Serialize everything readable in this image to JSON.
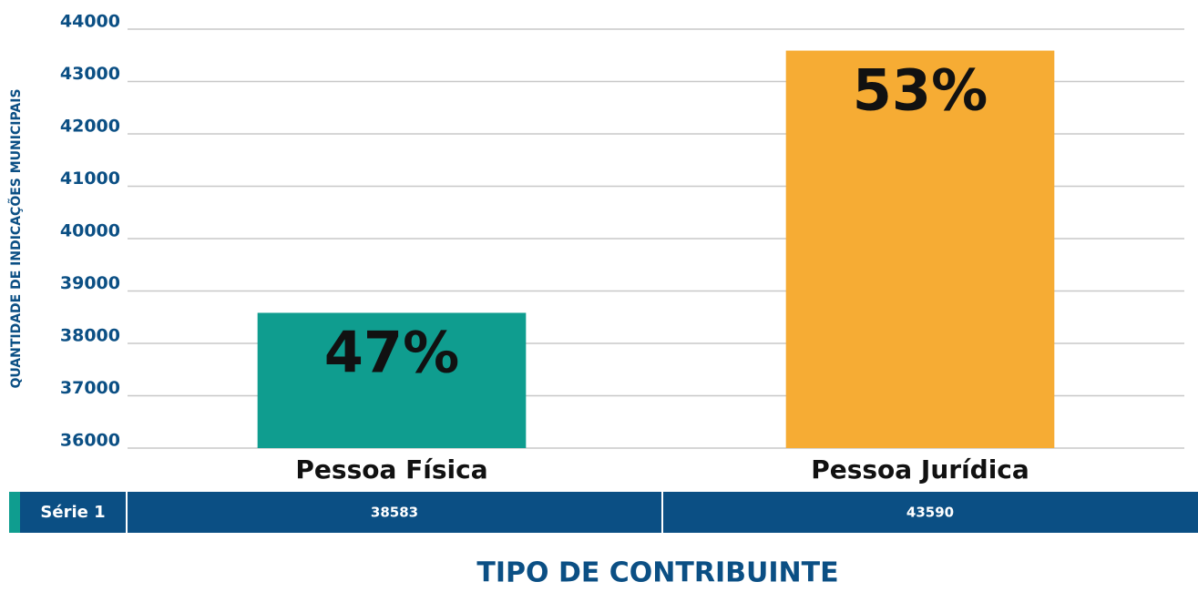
{
  "chart_data": {
    "type": "bar",
    "y_label": "QUANTIDADE DE INDICAÇÕES MUNICIPAIS",
    "x_label": "TIPO DE CONTRIBUINTE",
    "categories": [
      "Pessoa Física",
      "Pessoa Jurídica"
    ],
    "series": [
      {
        "name": "Série 1",
        "color": "#0f9d8f",
        "values": [
          38583,
          43590
        ]
      }
    ],
    "bar_colors": [
      "#0f9d8f",
      "#f6ac34"
    ],
    "annotations": [
      "47%",
      "53%"
    ],
    "ylim": [
      36000,
      44000
    ],
    "yticks": [
      36000,
      37000,
      38000,
      39000,
      40000,
      41000,
      42000,
      43000,
      44000
    ],
    "grid": true,
    "data_table": true
  }
}
